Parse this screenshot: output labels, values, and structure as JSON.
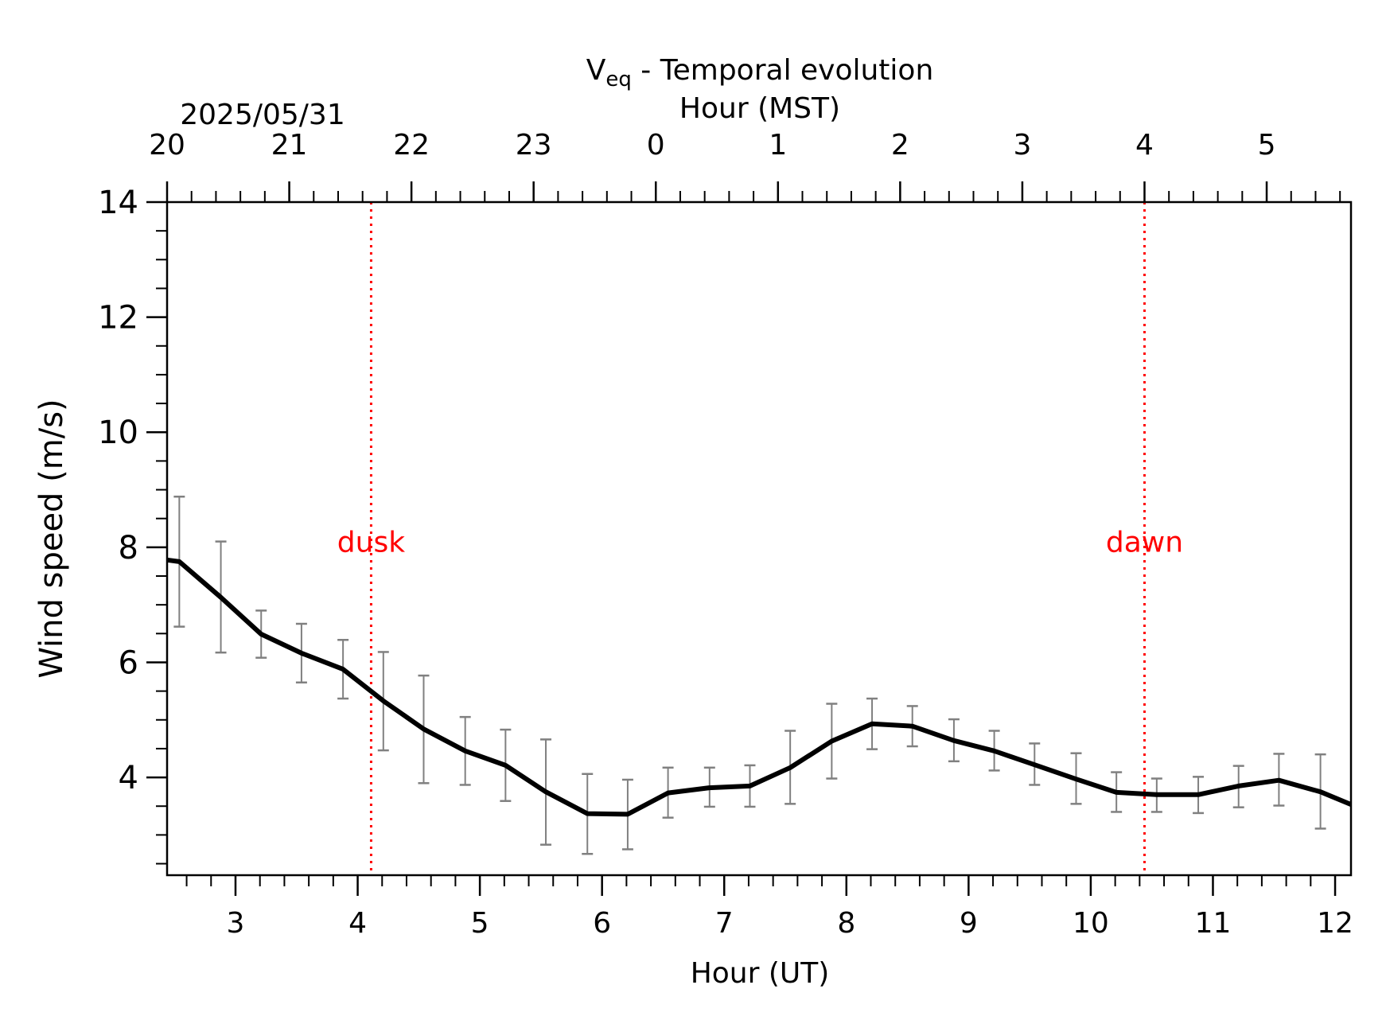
{
  "chart_data": {
    "type": "line",
    "title_main": "V",
    "title_sub": "eq",
    "title_rest": " - Temporal evolution",
    "top_axis_label": "Hour (MST)",
    "top_axis_date": "2025/05/31",
    "xlabel": "Hour (UT)",
    "ylabel": "Wind speed (m/s)",
    "xlim": [
      2.44,
      12.13
    ],
    "ylim": [
      2.3,
      14
    ],
    "x_ticks": [
      3,
      4,
      5,
      6,
      7,
      8,
      9,
      10,
      11,
      12
    ],
    "x_tick_labels": [
      "3",
      "4",
      "5",
      "6",
      "7",
      "8",
      "9",
      "10",
      "11",
      "12"
    ],
    "y_ticks": [
      4,
      6,
      8,
      10,
      12,
      14
    ],
    "y_tick_labels": [
      "4",
      "6",
      "8",
      "10",
      "12",
      "14"
    ],
    "top_ticks_ut": [
      2.44,
      3.44,
      4.44,
      5.44,
      6.44,
      7.44,
      8.44,
      9.44,
      10.44,
      11.44
    ],
    "top_tick_labels": [
      "20",
      "21",
      "22",
      "23",
      "0",
      "1",
      "2",
      "3",
      "4",
      "5"
    ],
    "grid": false,
    "series": [
      {
        "color": "#000000",
        "x": [
          2.44,
          2.54,
          2.88,
          3.21,
          3.54,
          3.88,
          4.21,
          4.54,
          4.88,
          5.21,
          5.54,
          5.88,
          6.21,
          6.54,
          6.88,
          7.21,
          7.54,
          7.88,
          8.21,
          8.54,
          8.88,
          9.21,
          9.54,
          9.88,
          10.21,
          10.54,
          10.88,
          11.21,
          11.54,
          11.88,
          12.13
        ],
        "y": [
          7.78,
          7.75,
          7.13,
          6.49,
          6.16,
          5.88,
          5.33,
          4.84,
          4.46,
          4.21,
          3.75,
          3.37,
          3.36,
          3.73,
          3.82,
          3.85,
          4.17,
          4.63,
          4.93,
          4.89,
          4.64,
          4.46,
          4.22,
          3.97,
          3.74,
          3.7,
          3.7,
          3.85,
          3.95,
          3.75,
          3.53
        ],
        "err_low": [
          null,
          6.62,
          6.17,
          6.08,
          5.65,
          5.37,
          4.47,
          3.9,
          3.87,
          3.59,
          2.83,
          2.67,
          2.75,
          3.3,
          3.49,
          3.49,
          3.54,
          3.98,
          4.49,
          4.54,
          4.28,
          4.12,
          3.87,
          3.54,
          3.4,
          3.4,
          3.38,
          3.48,
          3.51,
          3.11,
          null
        ],
        "err_high": [
          null,
          8.88,
          8.1,
          6.9,
          6.67,
          6.39,
          6.18,
          5.77,
          5.05,
          4.83,
          4.66,
          4.06,
          3.96,
          4.17,
          4.17,
          4.21,
          4.81,
          5.28,
          5.37,
          5.24,
          5.01,
          4.81,
          4.59,
          4.42,
          4.09,
          3.98,
          4.01,
          4.2,
          4.41,
          4.4,
          null
        ],
        "err_color": "#808080"
      }
    ],
    "annotations": [
      {
        "text": "dusk",
        "x": 4.11,
        "y": 8.1,
        "color": "#ff0000"
      },
      {
        "text": "dawn",
        "x": 10.44,
        "y": 8.1,
        "color": "#ff0000"
      }
    ],
    "vlines": [
      {
        "x": 4.11,
        "color": "#ff0000",
        "style": "dotted"
      },
      {
        "x": 10.44,
        "color": "#ff0000",
        "style": "dotted"
      }
    ]
  }
}
